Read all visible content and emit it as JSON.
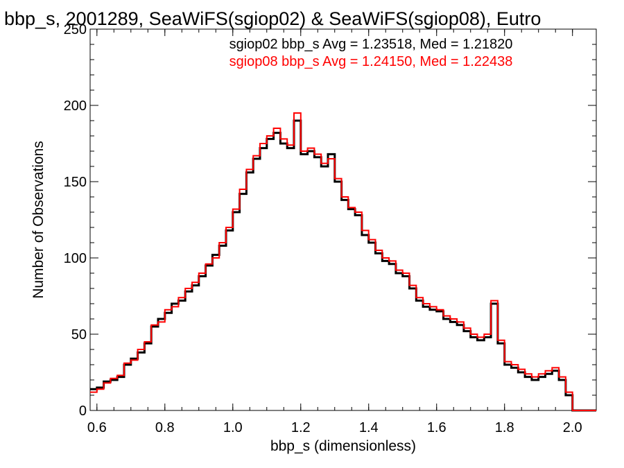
{
  "chart_data": {
    "type": "line",
    "title": "bbp_s, 2001289, SeaWiFS(sgiop02) & SeaWiFS(sgiop08), Eutro",
    "xlabel": "bbp_s (dimensionless)",
    "ylabel": "Number of Observations",
    "xlim": [
      0.58,
      2.07
    ],
    "ylim": [
      0,
      250
    ],
    "xticks": [
      "0.6",
      "0.8",
      "1.0",
      "1.2",
      "1.4",
      "1.6",
      "1.8",
      "2.0"
    ],
    "yticks": [
      "0",
      "50",
      "100",
      "150",
      "200",
      "250"
    ],
    "annotations": [
      "sgiop02 bbp_s Avg = 1.23518, Med = 1.21820",
      "sgiop08 bbp_s Avg = 1.24150, Med = 1.22438"
    ],
    "x": [
      0.58,
      0.6,
      0.62,
      0.64,
      0.66,
      0.68,
      0.7,
      0.72,
      0.74,
      0.76,
      0.78,
      0.8,
      0.82,
      0.84,
      0.86,
      0.88,
      0.9,
      0.92,
      0.94,
      0.96,
      0.98,
      1.0,
      1.02,
      1.04,
      1.06,
      1.08,
      1.1,
      1.12,
      1.14,
      1.16,
      1.18,
      1.2,
      1.22,
      1.24,
      1.26,
      1.28,
      1.3,
      1.32,
      1.34,
      1.36,
      1.38,
      1.4,
      1.42,
      1.44,
      1.46,
      1.48,
      1.5,
      1.52,
      1.54,
      1.56,
      1.58,
      1.6,
      1.62,
      1.64,
      1.66,
      1.68,
      1.7,
      1.72,
      1.74,
      1.76,
      1.78,
      1.8,
      1.82,
      1.84,
      1.86,
      1.88,
      1.9,
      1.92,
      1.94,
      1.96,
      1.98,
      2.0,
      2.02,
      2.04,
      2.06
    ],
    "series": [
      {
        "color": "#000000",
        "values": [
          14,
          15,
          19,
          20,
          22,
          30,
          34,
          38,
          44,
          55,
          60,
          64,
          70,
          72,
          78,
          82,
          88,
          95,
          102,
          108,
          118,
          130,
          142,
          156,
          165,
          172,
          178,
          182,
          175,
          172,
          190,
          168,
          170,
          166,
          160,
          168,
          150,
          138,
          132,
          128,
          115,
          110,
          103,
          98,
          96,
          90,
          88,
          80,
          72,
          68,
          66,
          65,
          60,
          58,
          56,
          52,
          48,
          46,
          48,
          70,
          44,
          30,
          28,
          25,
          22,
          20,
          22,
          24,
          26,
          20,
          10,
          0,
          0,
          0,
          0
        ]
      },
      {
        "color": "#ff0000",
        "values": [
          12,
          14,
          18,
          21,
          23,
          31,
          33,
          40,
          45,
          56,
          58,
          66,
          68,
          74,
          80,
          84,
          90,
          96,
          100,
          110,
          120,
          132,
          145,
          158,
          167,
          175,
          180,
          185,
          178,
          174,
          195,
          170,
          172,
          168,
          162,
          165,
          152,
          140,
          133,
          130,
          118,
          112,
          105,
          100,
          98,
          92,
          90,
          82,
          74,
          70,
          68,
          66,
          62,
          60,
          58,
          54,
          50,
          48,
          50,
          72,
          46,
          32,
          30,
          27,
          24,
          22,
          24,
          26,
          28,
          22,
          12,
          0,
          0,
          0,
          0
        ]
      }
    ]
  }
}
